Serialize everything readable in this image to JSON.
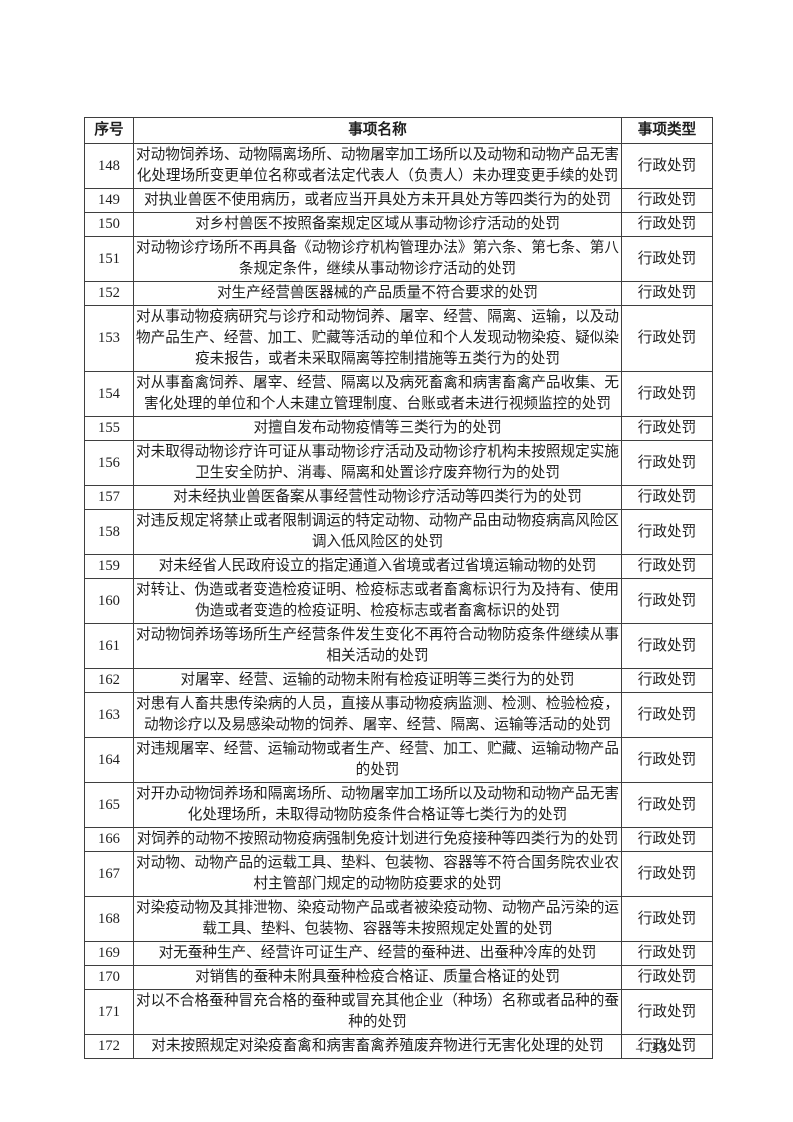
{
  "table": {
    "headers": [
      "序号",
      "事项名称",
      "事项类型"
    ],
    "rows": [
      {
        "no": "148",
        "name": "对动物饲养场、动物隔离场所、动物屠宰加工场所以及动物和动物产品无害化处理场所变更单位名称或者法定代表人（负责人）未办理变更手续的处罚",
        "type": "行政处罚"
      },
      {
        "no": "149",
        "name": "对执业兽医不使用病历，或者应当开具处方未开具处方等四类行为的处罚",
        "type": "行政处罚"
      },
      {
        "no": "150",
        "name": "对乡村兽医不按照备案规定区域从事动物诊疗活动的处罚",
        "type": "行政处罚"
      },
      {
        "no": "151",
        "name": "对动物诊疗场所不再具备《动物诊疗机构管理办法》第六条、第七条、第八条规定条件，继续从事动物诊疗活动的处罚",
        "type": "行政处罚"
      },
      {
        "no": "152",
        "name": "对生产经营兽医器械的产品质量不符合要求的处罚",
        "type": "行政处罚"
      },
      {
        "no": "153",
        "name": "对从事动物疫病研究与诊疗和动物饲养、屠宰、经营、隔离、运输，以及动物产品生产、经营、加工、贮藏等活动的单位和个人发现动物染疫、疑似染疫未报告，或者未采取隔离等控制措施等五类行为的处罚",
        "type": "行政处罚"
      },
      {
        "no": "154",
        "name": "对从事畜禽饲养、屠宰、经营、隔离以及病死畜禽和病害畜禽产品收集、无害化处理的单位和个人未建立管理制度、台账或者未进行视频监控的处罚",
        "type": "行政处罚"
      },
      {
        "no": "155",
        "name": "对擅自发布动物疫情等三类行为的处罚",
        "type": "行政处罚"
      },
      {
        "no": "156",
        "name": "对未取得动物诊疗许可证从事动物诊疗活动及动物诊疗机构未按照规定实施卫生安全防护、消毒、隔离和处置诊疗废弃物行为的处罚",
        "type": "行政处罚"
      },
      {
        "no": "157",
        "name": "对未经执业兽医备案从事经营性动物诊疗活动等四类行为的处罚",
        "type": "行政处罚"
      },
      {
        "no": "158",
        "name": "对违反规定将禁止或者限制调运的特定动物、动物产品由动物疫病高风险区调入低风险区的处罚",
        "type": "行政处罚"
      },
      {
        "no": "159",
        "name": "对未经省人民政府设立的指定通道入省境或者过省境运输动物的处罚",
        "type": "行政处罚"
      },
      {
        "no": "160",
        "name": "对转让、伪造或者变造检疫证明、检疫标志或者畜禽标识行为及持有、使用伪造或者变造的检疫证明、检疫标志或者畜禽标识的处罚",
        "type": "行政处罚"
      },
      {
        "no": "161",
        "name": "对动物饲养场等场所生产经营条件发生变化不再符合动物防疫条件继续从事相关活动的处罚",
        "type": "行政处罚"
      },
      {
        "no": "162",
        "name": "对屠宰、经营、运输的动物未附有检疫证明等三类行为的处罚",
        "type": "行政处罚"
      },
      {
        "no": "163",
        "name": "对患有人畜共患传染病的人员，直接从事动物疫病监测、检测、检验检疫，动物诊疗以及易感染动物的饲养、屠宰、经营、隔离、运输等活动的处罚",
        "type": "行政处罚"
      },
      {
        "no": "164",
        "name": "对违规屠宰、经营、运输动物或者生产、经营、加工、贮藏、运输动物产品的处罚",
        "type": "行政处罚"
      },
      {
        "no": "165",
        "name": "对开办动物饲养场和隔离场所、动物屠宰加工场所以及动物和动物产品无害化处理场所，未取得动物防疫条件合格证等七类行为的处罚",
        "type": "行政处罚"
      },
      {
        "no": "166",
        "name": "对饲养的动物不按照动物疫病强制免疫计划进行免疫接种等四类行为的处罚",
        "type": "行政处罚"
      },
      {
        "no": "167",
        "name": "对动物、动物产品的运载工具、垫料、包装物、容器等不符合国务院农业农村主管部门规定的动物防疫要求的处罚",
        "type": "行政处罚"
      },
      {
        "no": "168",
        "name": "对染疫动物及其排泄物、染疫动物产品或者被染疫动物、动物产品污染的运载工具、垫料、包装物、容器等未按照规定处置的处罚",
        "type": "行政处罚"
      },
      {
        "no": "169",
        "name": "对无蚕种生产、经营许可证生产、经营的蚕种进、出蚕种冷库的处罚",
        "type": "行政处罚"
      },
      {
        "no": "170",
        "name": "对销售的蚕种未附具蚕种检疫合格证、质量合格证的处罚",
        "type": "行政处罚"
      },
      {
        "no": "171",
        "name": "对以不合格蚕种冒充合格的蚕种或冒充其他企业（种场）名称或者品种的蚕种的处罚",
        "type": "行政处罚"
      },
      {
        "no": "172",
        "name": "对未按照规定对染疫畜禽和病害畜禽养殖废弃物进行无害化处理的处罚",
        "type": "行政处罚"
      }
    ]
  },
  "footer": {
    "page_number": "– 33 –"
  }
}
